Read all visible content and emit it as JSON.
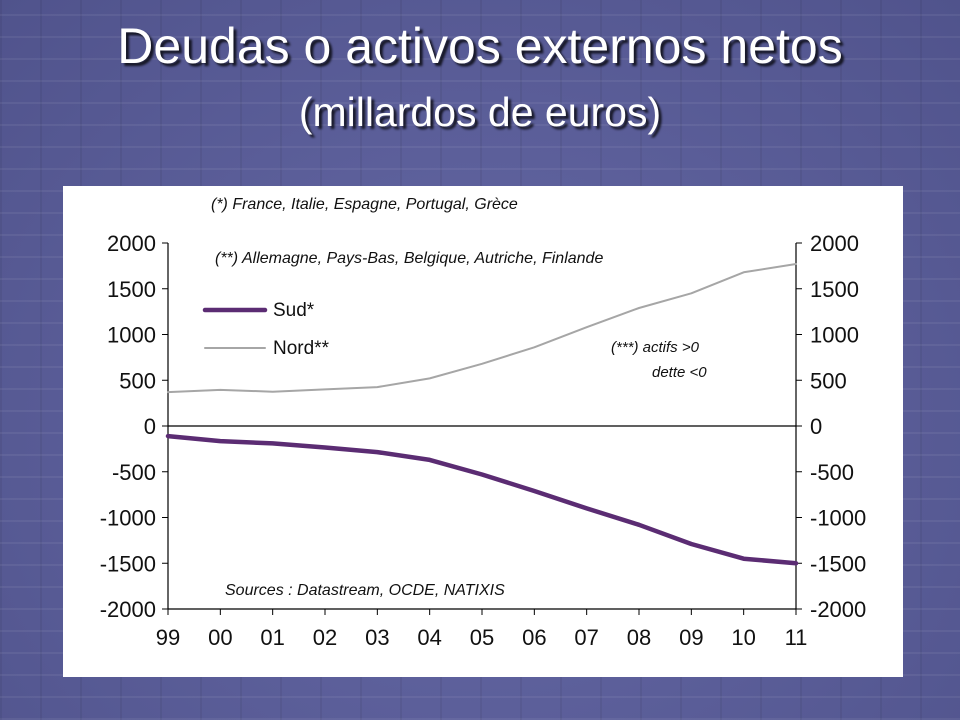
{
  "slide": {
    "title": "Deudas o activos externos netos",
    "subtitle": "(millardos de euros)"
  },
  "chart_data": {
    "type": "line",
    "x": [
      "99",
      "00",
      "01",
      "02",
      "03",
      "04",
      "05",
      "06",
      "07",
      "08",
      "09",
      "10",
      "11"
    ],
    "series": [
      {
        "name": "Sud*",
        "color": "#5b2c73",
        "values": [
          -110,
          -165,
          -190,
          -235,
          -285,
          -370,
          -530,
          -710,
          -900,
          -1080,
          -1290,
          -1450,
          -1500
        ]
      },
      {
        "name": "Nord**",
        "color": "#a6a6a6",
        "values": [
          370,
          395,
          375,
          400,
          425,
          520,
          680,
          860,
          1080,
          1290,
          1450,
          1680,
          1770
        ]
      }
    ],
    "ylim": [
      -2000,
      2000
    ],
    "yticks": [
      "2000",
      "1500",
      "1000",
      "500",
      "0",
      "-500",
      "-1000",
      "-1500",
      "-2000"
    ],
    "y_axes": "left and right",
    "legend_position": "left",
    "grid": false,
    "annotations": {
      "note_south": "(*) France, Italie, Espagne, Portugal, Grèce",
      "note_north": "(**) Allemagne, Pays-Bas, Belgique, Autriche, Finlande",
      "note_sign_1": "(***) actifs >0",
      "note_sign_2": "dette <0",
      "sources": "Sources : Datastream, OCDE, NATIXIS"
    }
  }
}
